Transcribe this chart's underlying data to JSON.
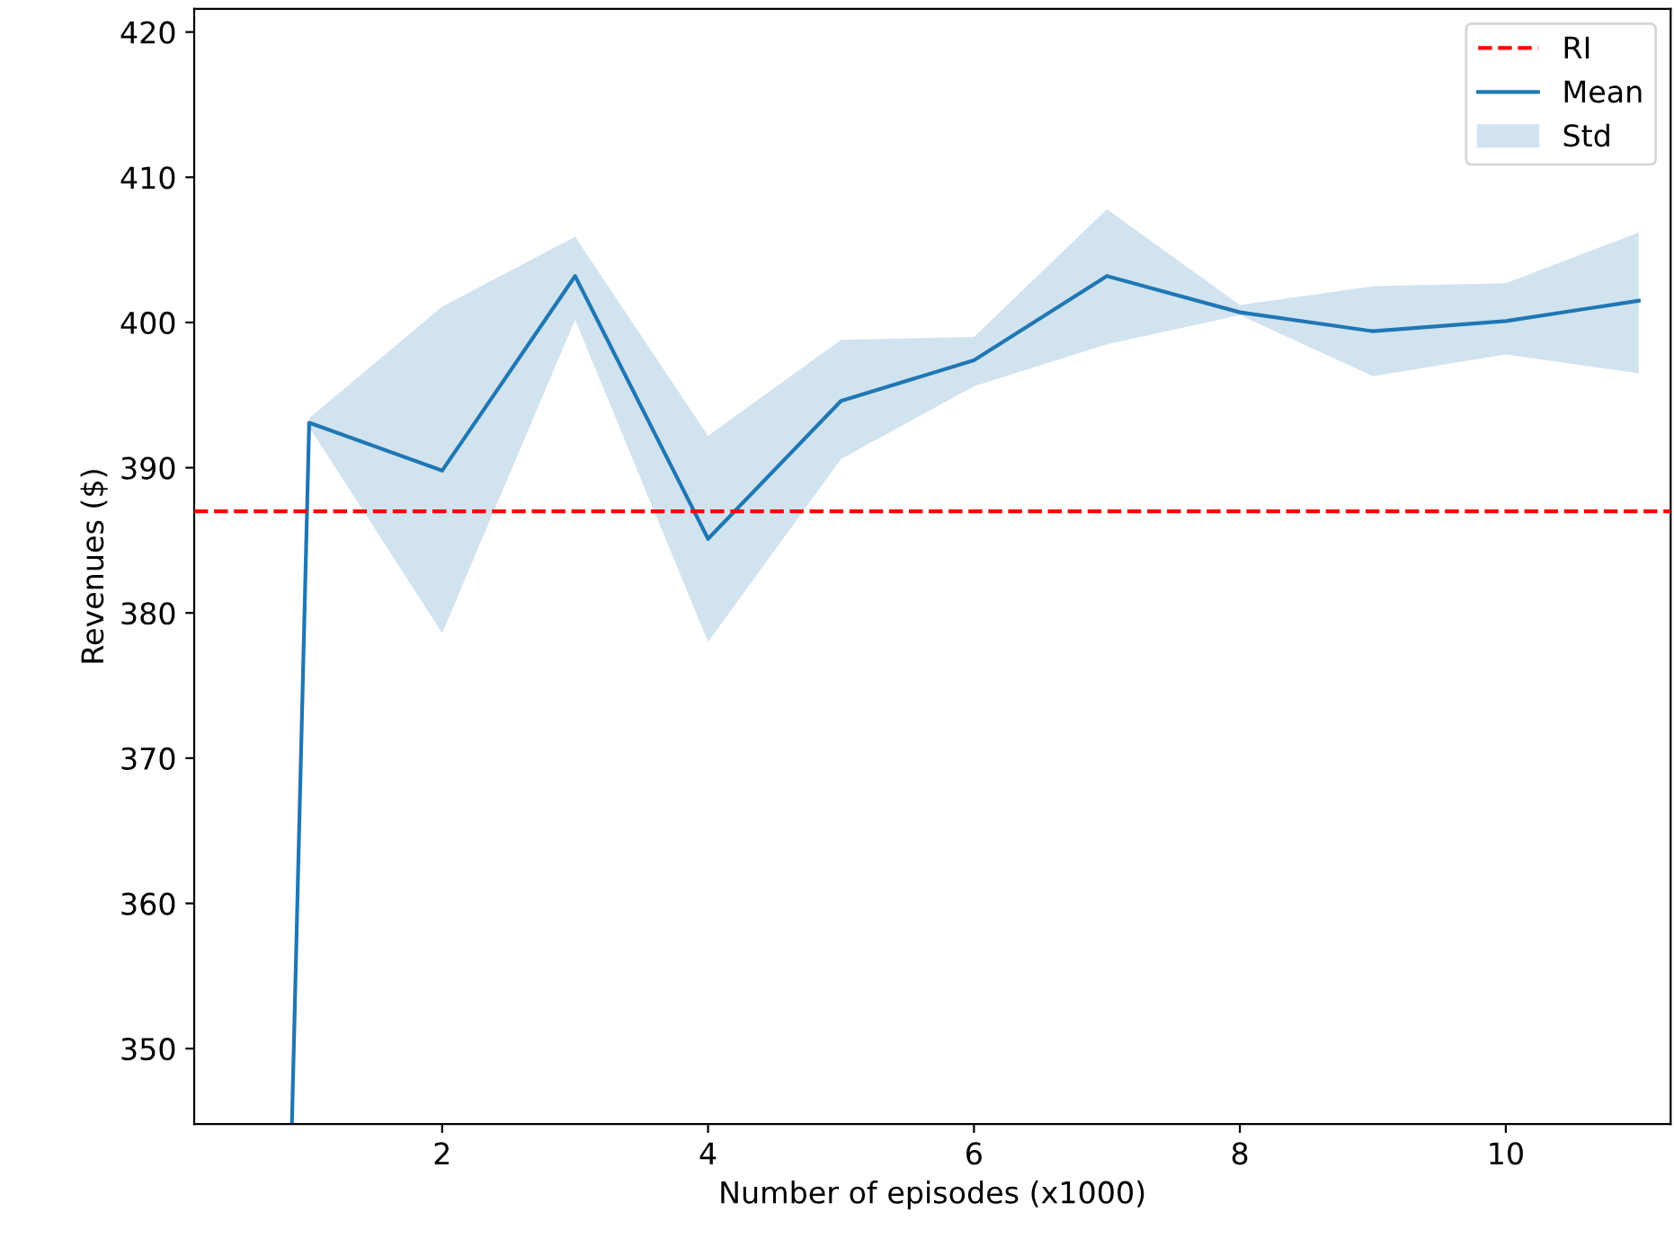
{
  "chart_data": {
    "type": "line",
    "xlabel": "Number of episodes (x1000)",
    "ylabel": "Revenues ($)",
    "xlim": [
      0.135,
      11.24
    ],
    "ylim": [
      344.8,
      421.6
    ],
    "xticks": [
      2,
      4,
      6,
      8,
      10
    ],
    "yticks": [
      350,
      360,
      370,
      380,
      390,
      400,
      410,
      420
    ],
    "grid": false,
    "legend": "top right",
    "line_style": "solid",
    "marker": "none",
    "ref_lines": [
      {
        "axis": "y",
        "value": 387.0,
        "label": "RI",
        "color": "#ff0000",
        "line_style": "dashed"
      }
    ],
    "series": [
      {
        "name": "Mean",
        "color": "#1f77b4",
        "x": [
          0.87,
          1,
          2,
          3,
          4,
          5,
          6,
          7,
          8,
          9,
          10,
          11
        ],
        "values": [
          344.8,
          393.1,
          389.8,
          403.2,
          385.1,
          394.6,
          397.4,
          403.2,
          400.7,
          399.4,
          400.1,
          401.5
        ]
      },
      {
        "name": "Std",
        "type": "area",
        "color": "#d2e3f0",
        "x": [
          1,
          2,
          3,
          4,
          5,
          6,
          7,
          8,
          9,
          10,
          11
        ],
        "values": [
          null,
          null,
          null,
          null,
          null,
          null,
          null,
          null,
          null,
          null,
          null
        ],
        "lower": [
          392.8,
          378.6,
          400.2,
          378.0,
          390.6,
          395.6,
          398.5,
          400.5,
          396.3,
          397.8,
          396.5
        ],
        "upper": [
          393.4,
          401.1,
          405.9,
          392.2,
          398.8,
          399.0,
          407.8,
          401.2,
          402.5,
          402.7,
          406.2
        ]
      }
    ]
  }
}
